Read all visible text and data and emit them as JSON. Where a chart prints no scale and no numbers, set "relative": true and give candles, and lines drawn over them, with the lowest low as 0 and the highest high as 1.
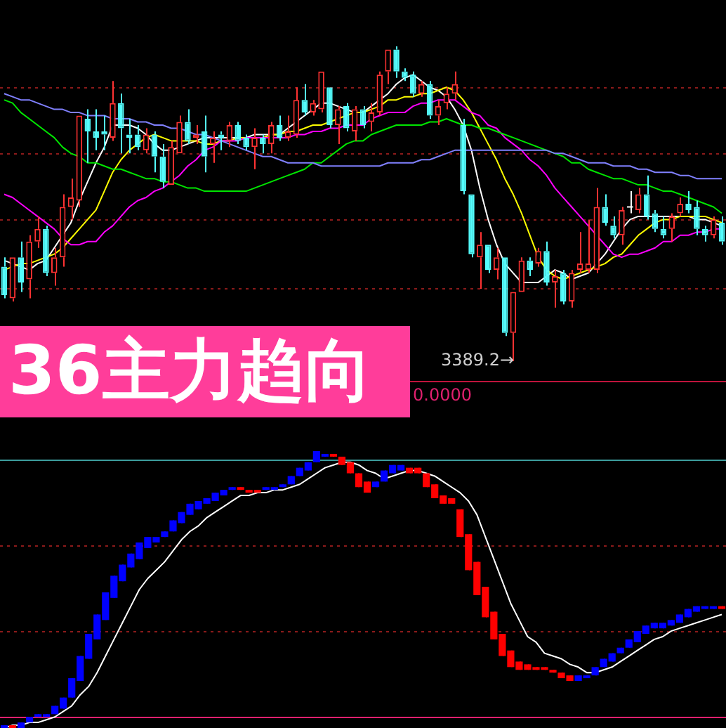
{
  "chart_data": [
    {
      "type": "candlestick",
      "title": "36主力趋向",
      "relative": true,
      "categories": [
        null,
        null,
        null,
        null,
        null,
        null,
        null,
        null,
        null,
        null,
        null,
        null,
        null,
        null,
        null,
        null,
        null,
        null,
        null,
        null,
        null,
        null,
        null,
        null,
        null,
        null,
        null,
        null,
        null,
        null,
        null,
        null,
        null,
        null,
        null,
        null,
        null,
        null,
        null,
        null,
        null,
        null,
        null,
        null,
        null,
        null,
        null,
        null,
        null,
        null,
        null,
        null,
        null,
        null,
        null,
        null,
        null,
        null,
        null,
        null,
        null,
        null,
        null,
        null,
        null,
        null,
        null,
        null,
        null,
        null,
        null,
        null,
        null,
        null,
        null,
        null,
        null,
        null,
        null,
        null,
        null,
        null,
        null,
        null,
        null,
        null,
        null
      ],
      "ohlc": [
        [
          0.3,
          0.33,
          0.2,
          0.21
        ],
        [
          0.2,
          0.33,
          0.19,
          0.33
        ],
        [
          0.33,
          0.38,
          0.22,
          0.25
        ],
        [
          0.26,
          0.4,
          0.2,
          0.38
        ],
        [
          0.38,
          0.46,
          0.36,
          0.42
        ],
        [
          0.42,
          0.43,
          0.27,
          0.28
        ],
        [
          0.28,
          0.36,
          0.24,
          0.33
        ],
        [
          0.33,
          0.53,
          0.3,
          0.49
        ],
        [
          0.49,
          0.58,
          0.45,
          0.52
        ],
        [
          0.51,
          0.78,
          0.49,
          0.78
        ],
        [
          0.77,
          0.8,
          0.63,
          0.73
        ],
        [
          0.73,
          0.8,
          0.67,
          0.71
        ],
        [
          0.73,
          0.78,
          0.67,
          0.72
        ],
        [
          0.71,
          0.89,
          0.7,
          0.82
        ],
        [
          0.82,
          0.85,
          0.66,
          0.74
        ],
        [
          0.72,
          0.77,
          0.66,
          0.71
        ],
        [
          0.72,
          0.75,
          0.67,
          0.68
        ],
        [
          0.67,
          0.74,
          0.66,
          0.72
        ],
        [
          0.72,
          0.73,
          0.6,
          0.65
        ],
        [
          0.65,
          0.69,
          0.55,
          0.57
        ],
        [
          0.56,
          0.7,
          0.56,
          0.68
        ],
        [
          0.66,
          0.78,
          0.66,
          0.76
        ],
        [
          0.76,
          0.8,
          0.69,
          0.7
        ],
        [
          0.71,
          0.75,
          0.69,
          0.72
        ],
        [
          0.73,
          0.78,
          0.6,
          0.65
        ],
        [
          0.69,
          0.73,
          0.63,
          0.71
        ],
        [
          0.72,
          0.73,
          0.67,
          0.71
        ],
        [
          0.7,
          0.76,
          0.68,
          0.75
        ],
        [
          0.75,
          0.76,
          0.69,
          0.7
        ],
        [
          0.71,
          0.72,
          0.67,
          0.68
        ],
        [
          0.68,
          0.74,
          0.61,
          0.71
        ],
        [
          0.71,
          0.72,
          0.66,
          0.69
        ],
        [
          0.69,
          0.76,
          0.66,
          0.75
        ],
        [
          0.75,
          0.78,
          0.7,
          0.71
        ],
        [
          0.71,
          0.78,
          0.7,
          0.73
        ],
        [
          0.72,
          0.87,
          0.71,
          0.83
        ],
        [
          0.83,
          0.88,
          0.78,
          0.79
        ],
        [
          0.79,
          0.83,
          0.78,
          0.82
        ],
        [
          0.8,
          0.92,
          0.79,
          0.92
        ],
        [
          0.87,
          0.87,
          0.74,
          0.75
        ],
        [
          0.75,
          0.81,
          0.69,
          0.8
        ],
        [
          0.81,
          0.82,
          0.73,
          0.74
        ],
        [
          0.73,
          0.81,
          0.7,
          0.8
        ],
        [
          0.8,
          0.81,
          0.74,
          0.75
        ],
        [
          0.76,
          0.82,
          0.73,
          0.79
        ],
        [
          0.79,
          0.92,
          0.78,
          0.91
        ],
        [
          0.92,
          0.99,
          0.88,
          0.99
        ],
        [
          0.99,
          1,
          0.9,
          0.92
        ],
        [
          0.92,
          0.93,
          0.89,
          0.9
        ],
        [
          0.91,
          0.92,
          0.84,
          0.85
        ],
        [
          0.85,
          0.89,
          0.84,
          0.88
        ],
        [
          0.88,
          0.89,
          0.77,
          0.78
        ],
        [
          0.78,
          0.83,
          0.75,
          0.81
        ],
        [
          0.82,
          0.87,
          0.8,
          0.85
        ],
        [
          0.85,
          0.92,
          0.83,
          0.88
        ],
        [
          0.75,
          0.77,
          0.53,
          0.54
        ],
        [
          0.53,
          0.53,
          0.33,
          0.34
        ],
        [
          0.33,
          0.41,
          0.23,
          0.37
        ],
        [
          0.37,
          0.37,
          0.28,
          0.29
        ],
        [
          0.29,
          0.36,
          0.26,
          0.33
        ],
        [
          0.33,
          0.33,
          0.08,
          0.09
        ],
        [
          0.09,
          0.22,
          0,
          0.22
        ],
        [
          0.22,
          0.33,
          0.22,
          0.32
        ],
        [
          0.32,
          0.33,
          0.27,
          0.29
        ],
        [
          0.31,
          0.36,
          0.3,
          0.35
        ],
        [
          0.35,
          0.38,
          0.24,
          0.25
        ],
        [
          0.25,
          0.29,
          0.17,
          0.27
        ],
        [
          0.28,
          0.29,
          0.18,
          0.19
        ],
        [
          0.19,
          0.29,
          0.17,
          0.28
        ],
        [
          0.29,
          0.41,
          0.28,
          0.31
        ],
        [
          0.29,
          0.45,
          0.28,
          0.31
        ],
        [
          0.29,
          0.55,
          0.28,
          0.49
        ],
        [
          0.49,
          0.53,
          0.43,
          0.44
        ],
        [
          0.43,
          0.46,
          0.39,
          0.4
        ],
        [
          0.4,
          0.49,
          0.37,
          0.48
        ],
        [
          0.49,
          0.54,
          0.47,
          0.49
        ],
        [
          0.48,
          0.55,
          0.47,
          0.53
        ],
        [
          0.53,
          0.59,
          0.45,
          0.46
        ],
        [
          0.47,
          0.48,
          0.41,
          0.42
        ],
        [
          0.42,
          0.46,
          0.39,
          0.4
        ],
        [
          0.42,
          0.47,
          0.38,
          0.46
        ],
        [
          0.47,
          0.52,
          0.46,
          0.5
        ],
        [
          0.5,
          0.54,
          0.47,
          0.48
        ],
        [
          0.49,
          0.51,
          0.4,
          0.42
        ],
        [
          0.42,
          0.43,
          0.38,
          0.4
        ],
        [
          0.4,
          0.46,
          0.39,
          0.45
        ],
        [
          0.44,
          0.46,
          0.37,
          0.38
        ]
      ],
      "colors": [
        "#54fcfc",
        "#ff3232",
        "#54fcfc",
        "#ff3232",
        "#ff3232",
        "#54fcfc",
        "#ff3232",
        "#ff3232",
        "#ff3232",
        "#ff3232",
        "#54fcfc",
        "#54fcfc",
        "#54fcfc",
        "#ff3232",
        "#54fcfc",
        "#54fcfc",
        "#54fcfc",
        "#ff3232",
        "#54fcfc",
        "#54fcfc",
        "#ff3232",
        "#ff3232",
        "#54fcfc",
        "#ff3232",
        "#54fcfc",
        "#ff3232",
        "#54fcfc",
        "#ff3232",
        "#54fcfc",
        "#54fcfc",
        "#ff3232",
        "#54fcfc",
        "#ff3232",
        "#54fcfc",
        "#ff3232",
        "#ff3232",
        "#54fcfc",
        "#ff3232",
        "#ff3232",
        "#54fcfc",
        "#ff3232",
        "#54fcfc",
        "#ff3232",
        "#54fcfc",
        "#ff3232",
        "#ff3232",
        "#ff3232",
        "#54fcfc",
        "#54fcfc",
        "#54fcfc",
        "#ff3232",
        "#54fcfc",
        "#ff3232",
        "#ff3232",
        "#ff3232",
        "#54fcfc",
        "#54fcfc",
        "#ff3232",
        "#54fcfc",
        "#ff3232",
        "#54fcfc",
        "#ff3232",
        "#ff3232",
        "#54fcfc",
        "#ff3232",
        "#54fcfc",
        "#ff3232",
        "#54fcfc",
        "#ff3232",
        "#ff3232",
        "#ff3232",
        "#ff3232",
        "#54fcfc",
        "#54fcfc",
        "#ff3232",
        "#ffffff",
        "#ff3232",
        "#54fcfc",
        "#54fcfc",
        "#54fcfc",
        "#ff3232",
        "#ff3232",
        "#54fcfc",
        "#54fcfc",
        "#54fcfc",
        "#ff3232",
        "#54fcfc"
      ],
      "series": [
        {
          "type": "line",
          "color": "#8080ff",
          "values": [
            0.85,
            0.84,
            0.83,
            0.83,
            0.82,
            0.81,
            0.8,
            0.8,
            0.79,
            0.79,
            0.78,
            0.78,
            0.78,
            0.77,
            0.77,
            0.77,
            0.76,
            0.76,
            0.75,
            0.75,
            0.74,
            0.74,
            0.73,
            0.72,
            0.72,
            0.71,
            0.7,
            0.69,
            0.68,
            0.67,
            0.66,
            0.65,
            0.65,
            0.64,
            0.63,
            0.63,
            0.63,
            0.63,
            0.62,
            0.62,
            0.62,
            0.62,
            0.62,
            0.62,
            0.62,
            0.62,
            0.63,
            0.63,
            0.63,
            0.63,
            0.64,
            0.64,
            0.65,
            0.66,
            0.67,
            0.67,
            0.67,
            0.67,
            0.67,
            0.67,
            0.67,
            0.67,
            0.67,
            0.67,
            0.67,
            0.67,
            0.66,
            0.66,
            0.65,
            0.64,
            0.63,
            0.63,
            0.63,
            0.62,
            0.62,
            0.62,
            0.61,
            0.61,
            0.6,
            0.6,
            0.6,
            0.59,
            0.59,
            0.58,
            0.58,
            0.58,
            0.58
          ]
        },
        {
          "type": "line",
          "color": "#00e600",
          "values": [
            0.83,
            0.82,
            0.79,
            0.77,
            0.75,
            0.73,
            0.71,
            0.68,
            0.66,
            0.65,
            0.63,
            0.63,
            0.62,
            0.61,
            0.61,
            0.6,
            0.59,
            0.58,
            0.58,
            0.57,
            0.57,
            0.56,
            0.55,
            0.55,
            0.54,
            0.54,
            0.54,
            0.54,
            0.54,
            0.54,
            0.55,
            0.56,
            0.57,
            0.58,
            0.59,
            0.6,
            0.61,
            0.63,
            0.63,
            0.65,
            0.67,
            0.69,
            0.7,
            0.7,
            0.72,
            0.73,
            0.74,
            0.75,
            0.75,
            0.75,
            0.75,
            0.76,
            0.76,
            0.77,
            0.76,
            0.75,
            0.75,
            0.74,
            0.74,
            0.73,
            0.72,
            0.71,
            0.7,
            0.69,
            0.68,
            0.67,
            0.66,
            0.65,
            0.63,
            0.63,
            0.61,
            0.6,
            0.59,
            0.58,
            0.58,
            0.57,
            0.56,
            0.56,
            0.55,
            0.54,
            0.54,
            0.53,
            0.52,
            0.51,
            0.5,
            0.49,
            0.47
          ]
        },
        {
          "type": "line",
          "color": "#ff00ff",
          "values": [
            0.53,
            0.52,
            0.5,
            0.48,
            0.46,
            0.44,
            0.42,
            0.39,
            0.37,
            0.37,
            0.38,
            0.38,
            0.41,
            0.43,
            0.46,
            0.49,
            0.51,
            0.52,
            0.54,
            0.55,
            0.57,
            0.59,
            0.62,
            0.64,
            0.67,
            0.68,
            0.7,
            0.7,
            0.7,
            0.71,
            0.71,
            0.71,
            0.71,
            0.71,
            0.71,
            0.72,
            0.72,
            0.73,
            0.73,
            0.74,
            0.74,
            0.75,
            0.75,
            0.75,
            0.77,
            0.78,
            0.79,
            0.79,
            0.79,
            0.81,
            0.82,
            0.82,
            0.83,
            0.83,
            0.83,
            0.81,
            0.79,
            0.78,
            0.75,
            0.74,
            0.71,
            0.69,
            0.67,
            0.64,
            0.62,
            0.59,
            0.55,
            0.52,
            0.49,
            0.46,
            0.43,
            0.4,
            0.37,
            0.34,
            0.33,
            0.34,
            0.34,
            0.35,
            0.36,
            0.38,
            0.38,
            0.4,
            0.4,
            0.41,
            0.41,
            0.42,
            0.42
          ]
        },
        {
          "type": "line",
          "color": "#ffff00",
          "values": [
            0.29,
            0.3,
            0.31,
            0.31,
            0.32,
            0.33,
            0.34,
            0.36,
            0.39,
            0.42,
            0.45,
            0.48,
            0.54,
            0.6,
            0.64,
            0.67,
            0.69,
            0.71,
            0.72,
            0.71,
            0.7,
            0.7,
            0.7,
            0.7,
            0.69,
            0.69,
            0.7,
            0.7,
            0.71,
            0.71,
            0.71,
            0.71,
            0.72,
            0.72,
            0.73,
            0.73,
            0.74,
            0.75,
            0.75,
            0.76,
            0.77,
            0.78,
            0.79,
            0.79,
            0.8,
            0.81,
            0.83,
            0.83,
            0.84,
            0.84,
            0.85,
            0.85,
            0.86,
            0.87,
            0.86,
            0.83,
            0.79,
            0.74,
            0.69,
            0.64,
            0.58,
            0.53,
            0.47,
            0.4,
            0.33,
            0.29,
            0.27,
            0.26,
            0.27,
            0.28,
            0.29,
            0.3,
            0.31,
            0.33,
            0.34,
            0.37,
            0.4,
            0.42,
            0.44,
            0.45,
            0.45,
            0.46,
            0.46,
            0.46,
            0.46,
            0.45,
            0.44
          ]
        },
        {
          "type": "line",
          "color": "#ffffff",
          "values": [
            0.32,
            0.31,
            0.3,
            0.29,
            0.31,
            0.32,
            0.36,
            0.4,
            0.44,
            0.51,
            0.57,
            0.63,
            0.68,
            0.75,
            0.75,
            0.75,
            0.74,
            0.72,
            0.69,
            0.67,
            0.67,
            0.68,
            0.69,
            0.7,
            0.71,
            0.71,
            0.71,
            0.71,
            0.71,
            0.71,
            0.72,
            0.72,
            0.72,
            0.72,
            0.74,
            0.76,
            0.78,
            0.8,
            0.82,
            0.82,
            0.81,
            0.8,
            0.79,
            0.79,
            0.81,
            0.83,
            0.85,
            0.88,
            0.9,
            0.91,
            0.89,
            0.87,
            0.86,
            0.84,
            0.8,
            0.75,
            0.67,
            0.55,
            0.45,
            0.37,
            0.31,
            0.28,
            0.25,
            0.25,
            0.25,
            0.27,
            0.29,
            0.28,
            0.26,
            0.27,
            0.28,
            0.31,
            0.34,
            0.38,
            0.42,
            0.45,
            0.46,
            0.46,
            0.46,
            0.46,
            0.46,
            0.46,
            0.46,
            0.45,
            0.45,
            0.44,
            0.43
          ]
        }
      ],
      "ref_lines": [
        {
          "axis": "y",
          "value": 0.87,
          "color": "#8b1a1a",
          "line_style": "dotted"
        },
        {
          "axis": "y",
          "value": 0.66,
          "color": "#8b1a1a",
          "line_style": "dotted"
        },
        {
          "axis": "y",
          "value": 0.45,
          "color": "#8b1a1a",
          "line_style": "dotted"
        },
        {
          "axis": "y",
          "value": 0.23,
          "color": "#8b1a1a",
          "line_style": "dotted"
        }
      ],
      "annotations": [
        "3389.2→"
      ]
    },
    {
      "type": "candlestick",
      "relative": true,
      "categories": [
        null,
        null,
        null,
        null,
        null,
        null,
        null,
        null,
        null,
        null,
        null,
        null,
        null,
        null,
        null,
        null,
        null,
        null,
        null,
        null,
        null,
        null,
        null,
        null,
        null,
        null,
        null,
        null,
        null,
        null,
        null,
        null,
        null,
        null,
        null,
        null,
        null,
        null,
        null,
        null,
        null,
        null,
        null,
        null,
        null,
        null,
        null,
        null,
        null,
        null,
        null,
        null,
        null,
        null,
        null,
        null,
        null,
        null,
        null,
        null,
        null,
        null,
        null,
        null,
        null,
        null,
        null,
        null,
        null,
        null,
        null,
        null,
        null,
        null,
        null,
        null,
        null,
        null,
        null,
        null,
        null,
        null,
        null,
        null,
        null,
        null
      ],
      "ohlc": [
        [
          0,
          0.01,
          0,
          0.01
        ],
        [
          0.01,
          0.01,
          0,
          0
        ],
        [
          0,
          0.02,
          0,
          0.02
        ],
        [
          0.02,
          0.04,
          0.02,
          0.04
        ],
        [
          0.04,
          0.05,
          0.04,
          0.05
        ],
        [
          0.04,
          0.05,
          0.04,
          0.05
        ],
        [
          0.05,
          0.08,
          0.05,
          0.08
        ],
        [
          0.07,
          0.11,
          0.07,
          0.11
        ],
        [
          0.11,
          0.18,
          0.11,
          0.18
        ],
        [
          0.17,
          0.26,
          0.17,
          0.26
        ],
        [
          0.25,
          0.34,
          0.25,
          0.34
        ],
        [
          0.32,
          0.41,
          0.32,
          0.41
        ],
        [
          0.39,
          0.49,
          0.39,
          0.49
        ],
        [
          0.47,
          0.55,
          0.47,
          0.55
        ],
        [
          0.53,
          0.59,
          0.53,
          0.59
        ],
        [
          0.58,
          0.63,
          0.58,
          0.63
        ],
        [
          0.61,
          0.67,
          0.61,
          0.67
        ],
        [
          0.65,
          0.69,
          0.65,
          0.69
        ],
        [
          0.67,
          0.69,
          0.67,
          0.69
        ],
        [
          0.69,
          0.71,
          0.69,
          0.71
        ],
        [
          0.71,
          0.75,
          0.71,
          0.75
        ],
        [
          0.74,
          0.78,
          0.74,
          0.78
        ],
        [
          0.77,
          0.81,
          0.77,
          0.81
        ],
        [
          0.79,
          0.82,
          0.79,
          0.82
        ],
        [
          0.81,
          0.83,
          0.81,
          0.83
        ],
        [
          0.82,
          0.85,
          0.82,
          0.85
        ],
        [
          0.84,
          0.86,
          0.84,
          0.86
        ],
        [
          0.86,
          0.87,
          0.86,
          0.87
        ],
        [
          0.87,
          0.87,
          0.86,
          0.86
        ],
        [
          0.86,
          0.86,
          0.85,
          0.85
        ],
        [
          0.86,
          0.86,
          0.85,
          0.85
        ],
        [
          0.86,
          0.87,
          0.86,
          0.87
        ],
        [
          0.86,
          0.87,
          0.86,
          0.87
        ],
        [
          0.87,
          0.88,
          0.87,
          0.88
        ],
        [
          0.88,
          0.91,
          0.88,
          0.91
        ],
        [
          0.91,
          0.94,
          0.91,
          0.94
        ],
        [
          0.93,
          0.96,
          0.93,
          0.96
        ],
        [
          0.96,
          1,
          0.96,
          1
        ],
        [
          0.98,
          0.99,
          0.98,
          0.99
        ],
        [
          0.99,
          0.99,
          0.98,
          0.98
        ],
        [
          0.98,
          0.98,
          0.95,
          0.95
        ],
        [
          0.96,
          0.96,
          0.92,
          0.92
        ],
        [
          0.92,
          0.92,
          0.87,
          0.87
        ],
        [
          0.89,
          0.89,
          0.85,
          0.85
        ],
        [
          0.87,
          0.89,
          0.87,
          0.89
        ],
        [
          0.89,
          0.93,
          0.89,
          0.93
        ],
        [
          0.92,
          0.95,
          0.92,
          0.95
        ],
        [
          0.93,
          0.95,
          0.93,
          0.95
        ],
        [
          0.94,
          0.94,
          0.92,
          0.92
        ],
        [
          0.94,
          0.94,
          0.92,
          0.92
        ],
        [
          0.92,
          0.92,
          0.87,
          0.87
        ],
        [
          0.88,
          0.88,
          0.83,
          0.83
        ],
        [
          0.84,
          0.84,
          0.81,
          0.81
        ],
        [
          0.83,
          0.83,
          0.81,
          0.81
        ],
        [
          0.79,
          0.79,
          0.69,
          0.69
        ],
        [
          0.7,
          0.7,
          0.57,
          0.57
        ],
        [
          0.6,
          0.6,
          0.48,
          0.48
        ],
        [
          0.51,
          0.51,
          0.4,
          0.4
        ],
        [
          0.42,
          0.42,
          0.32,
          0.32
        ],
        [
          0.34,
          0.34,
          0.26,
          0.26
        ],
        [
          0.28,
          0.28,
          0.22,
          0.22
        ],
        [
          0.24,
          0.24,
          0.21,
          0.21
        ],
        [
          0.23,
          0.23,
          0.21,
          0.21
        ],
        [
          0.22,
          0.22,
          0.21,
          0.21
        ],
        [
          0.22,
          0.22,
          0.21,
          0.21
        ],
        [
          0.21,
          0.21,
          0.2,
          0.2
        ],
        [
          0.2,
          0.2,
          0.18,
          0.18
        ],
        [
          0.19,
          0.19,
          0.17,
          0.17
        ],
        [
          0.17,
          0.19,
          0.17,
          0.19
        ],
        [
          0.18,
          0.19,
          0.18,
          0.19
        ],
        [
          0.19,
          0.22,
          0.19,
          0.22
        ],
        [
          0.22,
          0.25,
          0.22,
          0.25
        ],
        [
          0.24,
          0.27,
          0.24,
          0.27
        ],
        [
          0.27,
          0.29,
          0.27,
          0.29
        ],
        [
          0.29,
          0.32,
          0.29,
          0.32
        ],
        [
          0.31,
          0.35,
          0.31,
          0.35
        ],
        [
          0.34,
          0.37,
          0.34,
          0.37
        ],
        [
          0.36,
          0.38,
          0.36,
          0.38
        ],
        [
          0.36,
          0.38,
          0.36,
          0.38
        ],
        [
          0.37,
          0.39,
          0.37,
          0.39
        ],
        [
          0.38,
          0.41,
          0.38,
          0.41
        ],
        [
          0.4,
          0.43,
          0.4,
          0.43
        ],
        [
          0.42,
          0.44,
          0.42,
          0.44
        ],
        [
          0.43,
          0.44,
          0.43,
          0.44
        ],
        [
          0.43,
          0.44,
          0.43,
          0.44
        ],
        [
          0.44,
          0.44,
          0.43,
          0.43
        ]
      ],
      "colors": [
        "#0000ff",
        "#ff0000",
        "#0000ff",
        "#0000ff",
        "#0000ff",
        "#0000ff",
        "#0000ff",
        "#0000ff",
        "#0000ff",
        "#0000ff",
        "#0000ff",
        "#0000ff",
        "#0000ff",
        "#0000ff",
        "#0000ff",
        "#0000ff",
        "#0000ff",
        "#0000ff",
        "#0000ff",
        "#0000ff",
        "#0000ff",
        "#0000ff",
        "#0000ff",
        "#0000ff",
        "#0000ff",
        "#0000ff",
        "#0000ff",
        "#0000ff",
        "#ff0000",
        "#ff0000",
        "#ff0000",
        "#0000ff",
        "#0000ff",
        "#0000ff",
        "#0000ff",
        "#0000ff",
        "#0000ff",
        "#0000ff",
        "#0000ff",
        "#ff0000",
        "#ff0000",
        "#ff0000",
        "#ff0000",
        "#ff0000",
        "#0000ff",
        "#0000ff",
        "#0000ff",
        "#0000ff",
        "#ff0000",
        "#ff0000",
        "#ff0000",
        "#ff0000",
        "#ff0000",
        "#ff0000",
        "#ff0000",
        "#ff0000",
        "#ff0000",
        "#ff0000",
        "#ff0000",
        "#ff0000",
        "#ff0000",
        "#ff0000",
        "#ff0000",
        "#ff0000",
        "#ff0000",
        "#ff0000",
        "#ff0000",
        "#ff0000",
        "#0000ff",
        "#0000ff",
        "#0000ff",
        "#0000ff",
        "#0000ff",
        "#0000ff",
        "#0000ff",
        "#0000ff",
        "#0000ff",
        "#0000ff",
        "#0000ff",
        "#0000ff",
        "#0000ff",
        "#0000ff",
        "#0000ff",
        "#0000ff",
        "#0000ff",
        "#ff0000"
      ],
      "series": [
        {
          "type": "line",
          "color": "#ffffff",
          "values": [
            0.0,
            0.01,
            0.01,
            0.02,
            0.02,
            0.03,
            0.04,
            0.06,
            0.08,
            0.12,
            0.15,
            0.2,
            0.26,
            0.32,
            0.38,
            0.44,
            0.5,
            0.54,
            0.57,
            0.6,
            0.64,
            0.68,
            0.71,
            0.73,
            0.76,
            0.78,
            0.8,
            0.82,
            0.84,
            0.84,
            0.85,
            0.85,
            0.86,
            0.86,
            0.87,
            0.88,
            0.9,
            0.92,
            0.94,
            0.95,
            0.96,
            0.96,
            0.95,
            0.93,
            0.92,
            0.9,
            0.91,
            0.92,
            0.93,
            0.93,
            0.92,
            0.91,
            0.89,
            0.87,
            0.85,
            0.82,
            0.77,
            0.69,
            0.61,
            0.53,
            0.45,
            0.39,
            0.33,
            0.31,
            0.27,
            0.26,
            0.25,
            0.23,
            0.22,
            0.2,
            0.2,
            0.21,
            0.22,
            0.24,
            0.26,
            0.28,
            0.3,
            0.32,
            0.33,
            0.35,
            0.36,
            0.37,
            0.38,
            0.39,
            0.4,
            0.41
          ]
        }
      ],
      "ref_lines": [
        {
          "axis": "y",
          "value": 0.97,
          "color": "#3c9c9c",
          "line_style": "solid"
        },
        {
          "axis": "y",
          "value": 0.66,
          "color": "#8b1a1a",
          "line_style": "dotted"
        },
        {
          "axis": "y",
          "value": 0.35,
          "color": "#8b1a1a",
          "line_style": "dotted"
        },
        {
          "axis": "y",
          "value": 0.04,
          "color": "#e0206e",
          "line_style": "solid"
        }
      ],
      "annotations": [
        "0.0000"
      ]
    }
  ]
}
